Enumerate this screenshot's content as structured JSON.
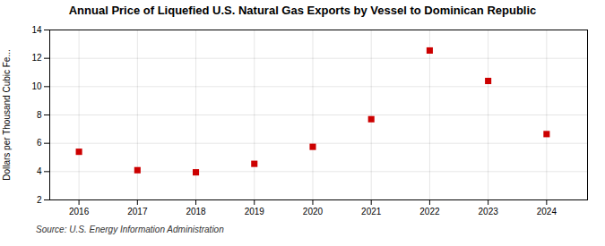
{
  "chart_data": {
    "type": "scatter",
    "title": "Annual Price of Liquefied U.S. Natural Gas Exports by Vessel to Dominican Republic",
    "ylabel": "Dollars per Thousand Cubic Fe...",
    "annotations": [
      "Source: U.S. Energy Information Administration"
    ],
    "x": [
      2016,
      2017,
      2018,
      2019,
      2020,
      2021,
      2022,
      2023,
      2024
    ],
    "values": [
      5.4,
      4.1,
      3.95,
      4.55,
      5.75,
      7.7,
      12.55,
      10.4,
      6.65
    ],
    "color": "#cc0000",
    "marker": "square",
    "xlim": [
      2015.5,
      2024.7
    ],
    "xticks": [
      2016,
      2017,
      2018,
      2019,
      2020,
      2021,
      2022,
      2023,
      2024
    ],
    "ylim": [
      2,
      14
    ],
    "yticks": [
      2,
      4,
      6,
      8,
      10,
      12,
      14
    ],
    "grid": true
  }
}
